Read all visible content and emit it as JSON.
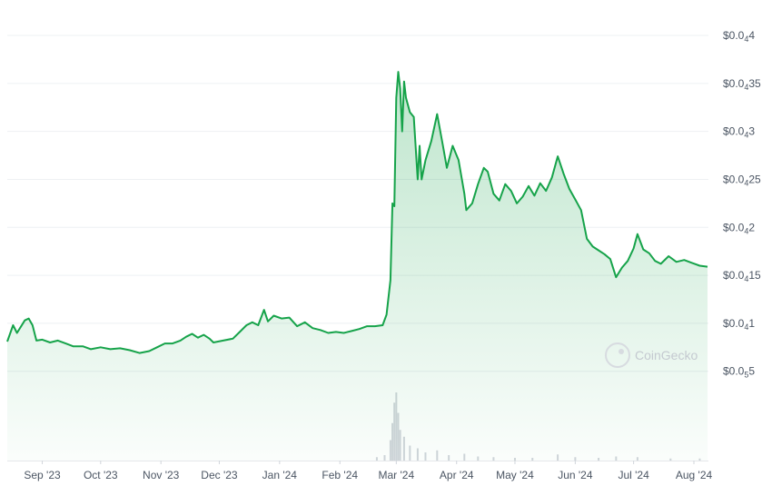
{
  "chart_data": {
    "type": "area",
    "title": "",
    "xlabel": "",
    "ylabel": "",
    "x_range": [
      "2023-08-14",
      "2024-08-08"
    ],
    "y_axis": {
      "position": "right",
      "range": [
        4.5e-06,
        4e-05
      ],
      "ticks": [
        {
          "value": 5e-06,
          "prefix": "$0.0",
          "zeros": "5",
          "digits": "5"
        },
        {
          "value": 1e-05,
          "prefix": "$0.0",
          "zeros": "4",
          "digits": "1"
        },
        {
          "value": 1.5e-05,
          "prefix": "$0.0",
          "zeros": "4",
          "digits": "15"
        },
        {
          "value": 2e-05,
          "prefix": "$0.0",
          "zeros": "4",
          "digits": "2"
        },
        {
          "value": 2.5e-05,
          "prefix": "$0.0",
          "zeros": "4",
          "digits": "25"
        },
        {
          "value": 3e-05,
          "prefix": "$0.0",
          "zeros": "4",
          "digits": "3"
        },
        {
          "value": 3.5e-05,
          "prefix": "$0.0",
          "zeros": "4",
          "digits": "35"
        },
        {
          "value": 4e-05,
          "prefix": "$0.0",
          "zeros": "4",
          "digits": "4"
        }
      ]
    },
    "x_ticks": [
      {
        "date": "2023-09-01",
        "label": "Sep '23"
      },
      {
        "date": "2023-10-01",
        "label": "Oct '23"
      },
      {
        "date": "2023-11-01",
        "label": "Nov '23"
      },
      {
        "date": "2023-12-01",
        "label": "Dec '23"
      },
      {
        "date": "2024-01-01",
        "label": "Jan '24"
      },
      {
        "date": "2024-02-01",
        "label": "Feb '24"
      },
      {
        "date": "2024-03-01",
        "label": "Mar '24"
      },
      {
        "date": "2024-04-01",
        "label": "Apr '24"
      },
      {
        "date": "2024-05-01",
        "label": "May '24"
      },
      {
        "date": "2024-06-01",
        "label": "Jun '24"
      },
      {
        "date": "2024-07-01",
        "label": "Jul '24"
      },
      {
        "date": "2024-08-01",
        "label": "Aug '24"
      }
    ],
    "grid": true,
    "colors": {
      "line": "#16a34a",
      "fill": "#16a34a",
      "grid": "#eef0f3",
      "volume": "#d1d5db"
    },
    "watermark": "CoinGecko",
    "series": [
      {
        "price": [
          [
            "2023-08-14",
            8.1e-06
          ],
          [
            "2023-08-17",
            9.8e-06
          ],
          [
            "2023-08-19",
            9e-06
          ],
          [
            "2023-08-23",
            1.03e-05
          ],
          [
            "2023-08-25",
            1.05e-05
          ],
          [
            "2023-08-27",
            9.8e-06
          ],
          [
            "2023-08-29",
            8.2e-06
          ],
          [
            "2023-09-01",
            8.3e-06
          ],
          [
            "2023-09-05",
            8e-06
          ],
          [
            "2023-09-09",
            8.2e-06
          ],
          [
            "2023-09-13",
            7.9e-06
          ],
          [
            "2023-09-17",
            7.6e-06
          ],
          [
            "2023-09-22",
            7.6e-06
          ],
          [
            "2023-09-26",
            7.3e-06
          ],
          [
            "2023-10-01",
            7.5e-06
          ],
          [
            "2023-10-06",
            7.3e-06
          ],
          [
            "2023-10-11",
            7.4e-06
          ],
          [
            "2023-10-16",
            7.2e-06
          ],
          [
            "2023-10-21",
            6.9e-06
          ],
          [
            "2023-10-26",
            7.1e-06
          ],
          [
            "2023-10-30",
            7.5e-06
          ],
          [
            "2023-11-03",
            7.9e-06
          ],
          [
            "2023-11-07",
            7.9e-06
          ],
          [
            "2023-11-11",
            8.2e-06
          ],
          [
            "2023-11-14",
            8.6e-06
          ],
          [
            "2023-11-17",
            8.9e-06
          ],
          [
            "2023-11-20",
            8.5e-06
          ],
          [
            "2023-11-23",
            8.8e-06
          ],
          [
            "2023-11-26",
            8.4e-06
          ],
          [
            "2023-11-28",
            8e-06
          ],
          [
            "2023-12-03",
            8.2e-06
          ],
          [
            "2023-12-08",
            8.4e-06
          ],
          [
            "2023-12-12",
            9.2e-06
          ],
          [
            "2023-12-15",
            9.8e-06
          ],
          [
            "2023-12-18",
            1.01e-05
          ],
          [
            "2023-12-21",
            9.8e-06
          ],
          [
            "2023-12-24",
            1.14e-05
          ],
          [
            "2023-12-26",
            1.02e-05
          ],
          [
            "2023-12-29",
            1.08e-05
          ],
          [
            "2024-01-02",
            1.05e-05
          ],
          [
            "2024-01-06",
            1.06e-05
          ],
          [
            "2024-01-10",
            9.7e-06
          ],
          [
            "2024-01-14",
            1.01e-05
          ],
          [
            "2024-01-18",
            9.5e-06
          ],
          [
            "2024-01-22",
            9.3e-06
          ],
          [
            "2024-01-26",
            9e-06
          ],
          [
            "2024-01-30",
            9.1e-06
          ],
          [
            "2024-02-03",
            9e-06
          ],
          [
            "2024-02-07",
            9.2e-06
          ],
          [
            "2024-02-11",
            9.4e-06
          ],
          [
            "2024-02-15",
            9.7e-06
          ],
          [
            "2024-02-19",
            9.7e-06
          ],
          [
            "2024-02-23",
            9.8e-06
          ],
          [
            "2024-02-25",
            1.09e-05
          ],
          [
            "2024-02-27",
            1.45e-05
          ],
          [
            "2024-02-28",
            2.25e-05
          ],
          [
            "2024-02-29",
            2.22e-05
          ],
          [
            "2024-03-01",
            3.35e-05
          ],
          [
            "2024-03-02",
            3.62e-05
          ],
          [
            "2024-03-03",
            3.45e-05
          ],
          [
            "2024-03-04",
            3e-05
          ],
          [
            "2024-03-05",
            3.52e-05
          ],
          [
            "2024-03-06",
            3.35e-05
          ],
          [
            "2024-03-08",
            3.2e-05
          ],
          [
            "2024-03-10",
            3.15e-05
          ],
          [
            "2024-03-12",
            2.5e-05
          ],
          [
            "2024-03-13",
            2.85e-05
          ],
          [
            "2024-03-14",
            2.5e-05
          ],
          [
            "2024-03-16",
            2.7e-05
          ],
          [
            "2024-03-19",
            2.9e-05
          ],
          [
            "2024-03-22",
            3.18e-05
          ],
          [
            "2024-03-25",
            2.85e-05
          ],
          [
            "2024-03-27",
            2.62e-05
          ],
          [
            "2024-03-30",
            2.85e-05
          ],
          [
            "2024-04-02",
            2.7e-05
          ],
          [
            "2024-04-05",
            2.35e-05
          ],
          [
            "2024-04-06",
            2.18e-05
          ],
          [
            "2024-04-09",
            2.25e-05
          ],
          [
            "2024-04-12",
            2.45e-05
          ],
          [
            "2024-04-15",
            2.62e-05
          ],
          [
            "2024-04-17",
            2.58e-05
          ],
          [
            "2024-04-20",
            2.35e-05
          ],
          [
            "2024-04-23",
            2.28e-05
          ],
          [
            "2024-04-26",
            2.45e-05
          ],
          [
            "2024-04-29",
            2.38e-05
          ],
          [
            "2024-05-02",
            2.25e-05
          ],
          [
            "2024-05-05",
            2.32e-05
          ],
          [
            "2024-05-08",
            2.43e-05
          ],
          [
            "2024-05-11",
            2.33e-05
          ],
          [
            "2024-05-14",
            2.46e-05
          ],
          [
            "2024-05-17",
            2.38e-05
          ],
          [
            "2024-05-20",
            2.52e-05
          ],
          [
            "2024-05-23",
            2.74e-05
          ],
          [
            "2024-05-26",
            2.56e-05
          ],
          [
            "2024-05-29",
            2.4e-05
          ],
          [
            "2024-06-01",
            2.29e-05
          ],
          [
            "2024-06-04",
            2.18e-05
          ],
          [
            "2024-06-07",
            1.88e-05
          ],
          [
            "2024-06-10",
            1.8e-05
          ],
          [
            "2024-06-13",
            1.76e-05
          ],
          [
            "2024-06-16",
            1.72e-05
          ],
          [
            "2024-06-19",
            1.67e-05
          ],
          [
            "2024-06-22",
            1.48e-05
          ],
          [
            "2024-06-25",
            1.58e-05
          ],
          [
            "2024-06-28",
            1.65e-05
          ],
          [
            "2024-07-01",
            1.78e-05
          ],
          [
            "2024-07-03",
            1.93e-05
          ],
          [
            "2024-07-06",
            1.77e-05
          ],
          [
            "2024-07-09",
            1.73e-05
          ],
          [
            "2024-07-12",
            1.65e-05
          ],
          [
            "2024-07-15",
            1.62e-05
          ],
          [
            "2024-07-19",
            1.7e-05
          ],
          [
            "2024-07-23",
            1.64e-05
          ],
          [
            "2024-07-27",
            1.66e-05
          ],
          [
            "2024-07-31",
            1.63e-05
          ],
          [
            "2024-08-04",
            1.6e-05
          ],
          [
            "2024-08-08",
            1.59e-05
          ]
        ],
        "volume_relative": [
          [
            "2024-02-20",
            0.05
          ],
          [
            "2024-02-24",
            0.08
          ],
          [
            "2024-02-27",
            0.3
          ],
          [
            "2024-02-28",
            0.55
          ],
          [
            "2024-02-29",
            0.85
          ],
          [
            "2024-03-01",
            1.0
          ],
          [
            "2024-03-02",
            0.7
          ],
          [
            "2024-03-03",
            0.45
          ],
          [
            "2024-03-05",
            0.35
          ],
          [
            "2024-03-08",
            0.22
          ],
          [
            "2024-03-12",
            0.18
          ],
          [
            "2024-03-16",
            0.12
          ],
          [
            "2024-03-22",
            0.15
          ],
          [
            "2024-03-28",
            0.08
          ],
          [
            "2024-04-05",
            0.1
          ],
          [
            "2024-04-12",
            0.06
          ],
          [
            "2024-04-20",
            0.05
          ],
          [
            "2024-05-01",
            0.04
          ],
          [
            "2024-05-10",
            0.04
          ],
          [
            "2024-05-23",
            0.09
          ],
          [
            "2024-06-01",
            0.05
          ],
          [
            "2024-06-13",
            0.04
          ],
          [
            "2024-06-22",
            0.06
          ],
          [
            "2024-07-03",
            0.05
          ],
          [
            "2024-07-20",
            0.03
          ],
          [
            "2024-08-04",
            0.03
          ]
        ]
      }
    ]
  }
}
